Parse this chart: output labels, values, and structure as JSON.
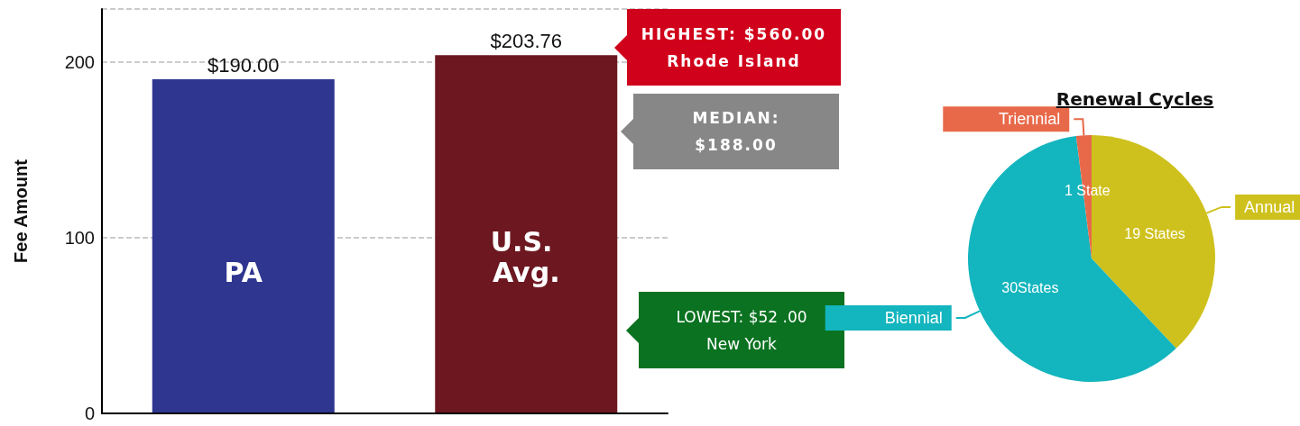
{
  "chart_data": [
    {
      "type": "bar",
      "ylabel": "Fee Amount",
      "categories": [
        "PA",
        "U.S. Avg."
      ],
      "values": [
        190,
        203.76
      ],
      "value_labels": [
        "$190.00",
        "$203.76"
      ],
      "colors": [
        "#2f3690",
        "#6d1820"
      ],
      "ylim": [
        0,
        230
      ],
      "yticks": [
        0,
        100,
        200
      ],
      "grid": "y",
      "annotations": [
        "HIGHEST:  $560.00\nRhode Island",
        "MEDIAN:\n$188.00",
        "LOWEST: $52 .00\nNew York"
      ]
    },
    {
      "type": "pie",
      "title": "Renewal Cycles",
      "categories": [
        "Annual",
        "Biennial",
        "Triennial"
      ],
      "values": [
        19,
        30,
        1
      ],
      "value_labels": [
        "19 States",
        "30States",
        "1 State"
      ],
      "colors": [
        "#cfc11d",
        "#13b5be",
        "#e8694a"
      ]
    }
  ]
}
